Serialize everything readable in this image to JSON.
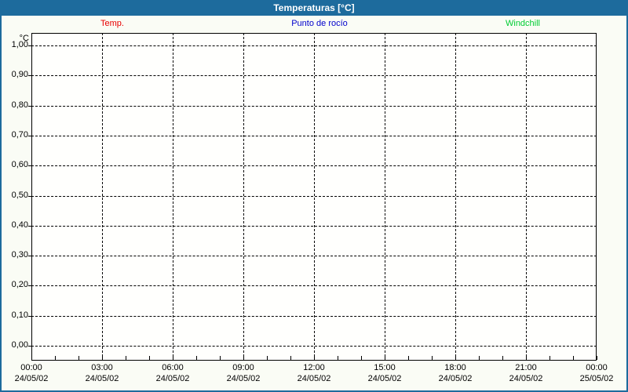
{
  "window": {
    "title": "Temperaturas [°C]"
  },
  "legend": {
    "items": [
      {
        "label": "Temp.",
        "color": "#e80000"
      },
      {
        "label": "Punto de rocío",
        "color": "#0000cc"
      },
      {
        "label": "Windchill",
        "color": "#00cc33"
      }
    ]
  },
  "colors": {
    "titlebar_bg": "#1d6b9d",
    "titlebar_text": "#ffffff",
    "frame_border": "#1d6b9d",
    "page_bg": "#fafcf5",
    "plot_bg": "#fffffd",
    "grid": "#000000"
  },
  "chart_data": {
    "type": "line",
    "title": "Temperaturas [°C]",
    "ylabel": "°C",
    "ylim": [
      0.0,
      1.0
    ],
    "grid": true,
    "legend_position": "top",
    "y_ticks": [
      {
        "value": 1.0,
        "label": "1,00"
      },
      {
        "value": 0.9,
        "label": "0,90"
      },
      {
        "value": 0.8,
        "label": "0,80"
      },
      {
        "value": 0.7,
        "label": "0,70"
      },
      {
        "value": 0.6,
        "label": "0,60"
      },
      {
        "value": 0.5,
        "label": "0,50"
      },
      {
        "value": 0.4,
        "label": "0,40"
      },
      {
        "value": 0.3,
        "label": "0,30"
      },
      {
        "value": 0.2,
        "label": "0,20"
      },
      {
        "value": 0.1,
        "label": "0,10"
      },
      {
        "value": 0.0,
        "label": "0,00"
      }
    ],
    "x_ticks": [
      {
        "hour": 0,
        "time": "00:00",
        "date": "24/05/02"
      },
      {
        "hour": 3,
        "time": "03:00",
        "date": "24/05/02"
      },
      {
        "hour": 6,
        "time": "06:00",
        "date": "24/05/02"
      },
      {
        "hour": 9,
        "time": "09:00",
        "date": "24/05/02"
      },
      {
        "hour": 12,
        "time": "12:00",
        "date": "24/05/02"
      },
      {
        "hour": 15,
        "time": "15:00",
        "date": "24/05/02"
      },
      {
        "hour": 18,
        "time": "18:00",
        "date": "24/05/02"
      },
      {
        "hour": 21,
        "time": "21:00",
        "date": "24/05/02"
      },
      {
        "hour": 24,
        "time": "00:00",
        "date": "25/05/02"
      }
    ],
    "x_minor_tick_interval_hours": 1,
    "x_range_hours": [
      0,
      24
    ],
    "series": [
      {
        "name": "Temp.",
        "color": "#e80000",
        "values": []
      },
      {
        "name": "Punto de rocío",
        "color": "#0000cc",
        "values": []
      },
      {
        "name": "Windchill",
        "color": "#00cc33",
        "values": []
      }
    ]
  }
}
